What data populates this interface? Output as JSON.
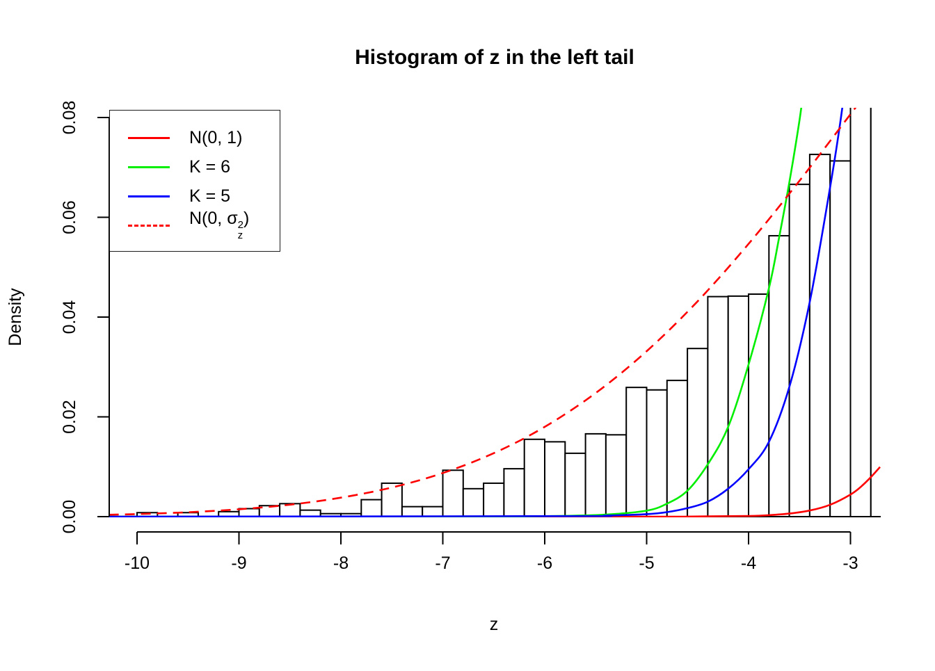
{
  "chart_data": {
    "type": "bar",
    "subtype": "histogram-with-density-curves",
    "title": "Histogram of z in the left tail",
    "xlabel": "z",
    "ylabel": "Density",
    "xlim": [
      -10.275,
      -2.71
    ],
    "ylim": [
      0,
      0.0819
    ],
    "grid": false,
    "xticks": {
      "values": [
        -10,
        -9,
        -8,
        -7,
        -6,
        -5,
        -4,
        -3
      ],
      "labels": [
        "-10",
        "-9",
        "-8",
        "-7",
        "-6",
        "-5",
        "-4",
        "-3"
      ]
    },
    "yticks": {
      "values": [
        0,
        0.02,
        0.04,
        0.06,
        0.08
      ],
      "labels": [
        "0.00",
        "0.02",
        "0.04",
        "0.06",
        "0.08"
      ]
    },
    "histogram": {
      "bin_width": 0.2,
      "bar_fill": "#ffffff",
      "bar_stroke": "#000000",
      "note": "bins give left edge and density; 0.12 means bar is clipped at plot top (exceeds ylim)",
      "bins": [
        {
          "x": -10.2,
          "density": 0
        },
        {
          "x": -10.0,
          "density": 0.0008
        },
        {
          "x": -9.8,
          "density": 0
        },
        {
          "x": -9.6,
          "density": 0.0008
        },
        {
          "x": -9.4,
          "density": 0
        },
        {
          "x": -9.2,
          "density": 0.001
        },
        {
          "x": -9.0,
          "density": 0.0016
        },
        {
          "x": -8.8,
          "density": 0.0022
        },
        {
          "x": -8.6,
          "density": 0.0026
        },
        {
          "x": -8.4,
          "density": 0.0013
        },
        {
          "x": -8.2,
          "density": 0.0006
        },
        {
          "x": -8.0,
          "density": 0.0006
        },
        {
          "x": -7.8,
          "density": 0.0034
        },
        {
          "x": -7.6,
          "density": 0.0067
        },
        {
          "x": -7.4,
          "density": 0.002
        },
        {
          "x": -7.2,
          "density": 0.002
        },
        {
          "x": -7.0,
          "density": 0.0093
        },
        {
          "x": -6.8,
          "density": 0.0056
        },
        {
          "x": -6.6,
          "density": 0.0067
        },
        {
          "x": -6.4,
          "density": 0.0096
        },
        {
          "x": -6.2,
          "density": 0.0155
        },
        {
          "x": -6.0,
          "density": 0.015
        },
        {
          "x": -5.8,
          "density": 0.0127
        },
        {
          "x": -5.6,
          "density": 0.0166
        },
        {
          "x": -5.4,
          "density": 0.0164
        },
        {
          "x": -5.2,
          "density": 0.0259
        },
        {
          "x": -5.0,
          "density": 0.0254
        },
        {
          "x": -4.8,
          "density": 0.0273
        },
        {
          "x": -4.6,
          "density": 0.0337
        },
        {
          "x": -4.4,
          "density": 0.0441
        },
        {
          "x": -4.2,
          "density": 0.0442
        },
        {
          "x": -4.0,
          "density": 0.0446
        },
        {
          "x": -3.8,
          "density": 0.0563
        },
        {
          "x": -3.6,
          "density": 0.0666
        },
        {
          "x": -3.4,
          "density": 0.0726
        },
        {
          "x": -3.2,
          "density": 0.0713
        },
        {
          "x": -3.0,
          "density": 0.12
        },
        {
          "x": -2.8,
          "density": 0.12
        }
      ]
    },
    "curves": [
      {
        "name": "N(0, 1)",
        "color": "#ff0000",
        "style": "solid",
        "points": [
          [
            -10.275,
            0
          ],
          [
            -5.0,
            0
          ],
          [
            -4.6,
            2e-05
          ],
          [
            -4.3,
            8e-05
          ],
          [
            -4.0,
            0.00013
          ],
          [
            -3.8,
            0.00029
          ],
          [
            -3.6,
            0.00061
          ],
          [
            -3.4,
            0.00123
          ],
          [
            -3.2,
            0.00238
          ],
          [
            -3.0,
            0.00443
          ],
          [
            -2.9,
            0.00595
          ],
          [
            -2.8,
            0.00792
          ],
          [
            -2.71,
            0.00995
          ]
        ]
      },
      {
        "name": "K = 6",
        "color": "#00ee00",
        "style": "solid",
        "points": [
          [
            -10.275,
            0
          ],
          [
            -6.6,
            2e-05
          ],
          [
            -6.2,
            6e-05
          ],
          [
            -5.8,
            0.00015
          ],
          [
            -5.4,
            0.0004
          ],
          [
            -5.0,
            0.0012
          ],
          [
            -4.8,
            0.0026
          ],
          [
            -4.6,
            0.0052
          ],
          [
            -4.4,
            0.0105
          ],
          [
            -4.2,
            0.018
          ],
          [
            -4.0,
            0.0305
          ],
          [
            -3.8,
            0.0458
          ],
          [
            -3.7,
            0.056
          ],
          [
            -3.6,
            0.067
          ],
          [
            -3.5,
            0.0795
          ],
          [
            -3.44,
            0.089
          ]
        ]
      },
      {
        "name": "K = 5",
        "color": "#0000ff",
        "style": "solid",
        "points": [
          [
            -10.275,
            0
          ],
          [
            -5.8,
            0.0001
          ],
          [
            -5.4,
            0.0002
          ],
          [
            -5.0,
            0.0005
          ],
          [
            -4.8,
            0.0009
          ],
          [
            -4.6,
            0.0017
          ],
          [
            -4.4,
            0.003
          ],
          [
            -4.2,
            0.0056
          ],
          [
            -4.0,
            0.0095
          ],
          [
            -3.8,
            0.015
          ],
          [
            -3.6,
            0.026
          ],
          [
            -3.4,
            0.043
          ],
          [
            -3.2,
            0.066
          ],
          [
            -3.1,
            0.079
          ],
          [
            -3.03,
            0.09
          ]
        ]
      },
      {
        "name": "N(0, sigma_z^2)",
        "sigma_z": 3,
        "color": "#ff0000",
        "style": "dashed",
        "points": [
          [
            -10.275,
            0.00038
          ],
          [
            -10,
            0.00052
          ],
          [
            -9.5,
            0.00088
          ],
          [
            -9.0,
            0.00148
          ],
          [
            -8.5,
            0.0024
          ],
          [
            -8.0,
            0.0038
          ],
          [
            -7.5,
            0.00584
          ],
          [
            -7.0,
            0.00874
          ],
          [
            -6.5,
            0.01272
          ],
          [
            -6.0,
            0.018
          ],
          [
            -5.5,
            0.02478
          ],
          [
            -5.0,
            0.03316
          ],
          [
            -4.5,
            0.04317
          ],
          [
            -4.0,
            0.05467
          ],
          [
            -3.5,
            0.06733
          ],
          [
            -3.0,
            0.08066
          ],
          [
            -2.9,
            0.08342
          ]
        ]
      }
    ],
    "legend": {
      "position": "top-left",
      "entries": [
        {
          "label": "N(0, 1)",
          "color": "#ff0000",
          "dash": false
        },
        {
          "label": "K = 6",
          "color": "#00ee00",
          "dash": false
        },
        {
          "label": "K = 5",
          "color": "#0000ff",
          "dash": false
        },
        {
          "parts": {
            "prefix": "N(0, ",
            "symbol": "σ",
            "sup": "2",
            "sub": "z",
            "suffix": ")"
          },
          "color": "#ff0000",
          "dash": true
        }
      ]
    },
    "colors": {
      "axis": "#000000",
      "bar_outline": "#000000",
      "background": "#ffffff"
    }
  }
}
